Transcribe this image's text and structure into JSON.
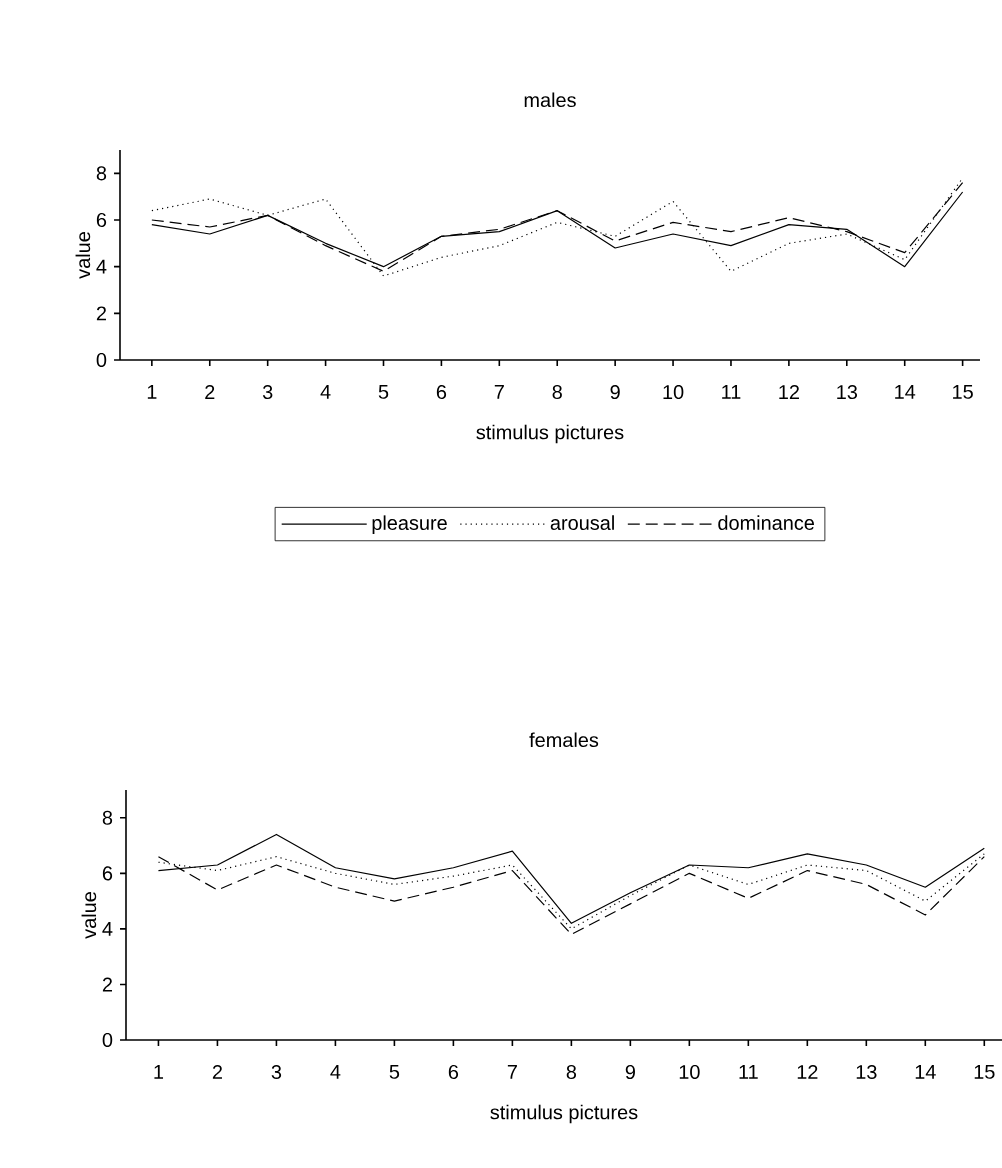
{
  "chart_data": [
    {
      "type": "line",
      "title": "males",
      "xlabel": "stimulus pictures",
      "ylabel": "value",
      "categories": [
        "1",
        "2",
        "3",
        "4",
        "5",
        "6",
        "7",
        "8",
        "9",
        "10",
        "11",
        "12",
        "13",
        "14",
        "15"
      ],
      "series": [
        {
          "name": "pleasure",
          "color": "#000000",
          "line_style": "solid",
          "values": [
            5.8,
            5.4,
            6.2,
            5.0,
            4.0,
            5.3,
            5.5,
            6.4,
            4.8,
            5.4,
            4.9,
            5.8,
            5.6,
            4.0,
            7.2
          ]
        },
        {
          "name": "arousal",
          "color": "#000000",
          "line_style": "dotted",
          "values": [
            6.4,
            6.9,
            6.2,
            6.9,
            3.6,
            4.4,
            4.9,
            5.9,
            5.3,
            6.8,
            3.8,
            5.0,
            5.4,
            4.3,
            7.8
          ]
        },
        {
          "name": "dominance",
          "color": "#000000",
          "line_style": "dashed",
          "values": [
            6.0,
            5.7,
            6.2,
            4.9,
            3.8,
            5.3,
            5.6,
            6.4,
            5.1,
            5.9,
            5.5,
            6.1,
            5.5,
            4.6,
            7.6
          ]
        }
      ],
      "ylim": [
        0,
        9
      ],
      "yticks": [
        0,
        2,
        4,
        6,
        8
      ],
      "legend": "bottom",
      "grid": false,
      "marker": "none"
    },
    {
      "type": "line",
      "title": "females",
      "xlabel": "stimulus pictures",
      "ylabel": "value",
      "categories": [
        "1",
        "2",
        "3",
        "4",
        "5",
        "6",
        "7",
        "8",
        "9",
        "10",
        "11",
        "12",
        "13",
        "14",
        "15"
      ],
      "series": [
        {
          "color": "#000000",
          "line_style": "solid",
          "values": [
            6.1,
            6.3,
            7.4,
            6.2,
            5.8,
            6.2,
            6.8,
            4.2,
            5.3,
            6.3,
            6.2,
            6.7,
            6.3,
            5.5,
            6.9
          ]
        },
        {
          "color": "#000000",
          "line_style": "dotted",
          "values": [
            6.4,
            6.1,
            6.6,
            6.0,
            5.6,
            5.9,
            6.3,
            4.0,
            5.2,
            6.3,
            5.6,
            6.3,
            6.1,
            5.0,
            6.7
          ]
        },
        {
          "color": "#000000",
          "line_style": "dashed",
          "values": [
            6.6,
            5.4,
            6.3,
            5.5,
            5.0,
            5.5,
            6.1,
            3.8,
            4.9,
            6.0,
            5.1,
            6.1,
            5.6,
            4.5,
            6.6
          ]
        }
      ],
      "ylim": [
        0,
        9
      ],
      "yticks": [
        0,
        2,
        4,
        6,
        8
      ],
      "legend": false,
      "grid": false,
      "marker": "none"
    }
  ]
}
